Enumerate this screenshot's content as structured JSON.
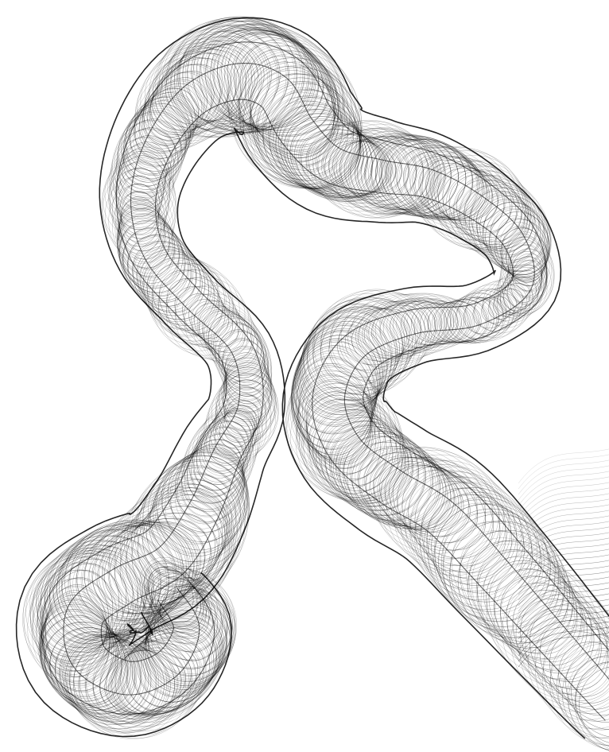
{
  "artwork": {
    "background_color": "#ffffff",
    "stroke_color": "#000000",
    "subject": "looping-ribbon-of-fine-line-rings"
  }
}
